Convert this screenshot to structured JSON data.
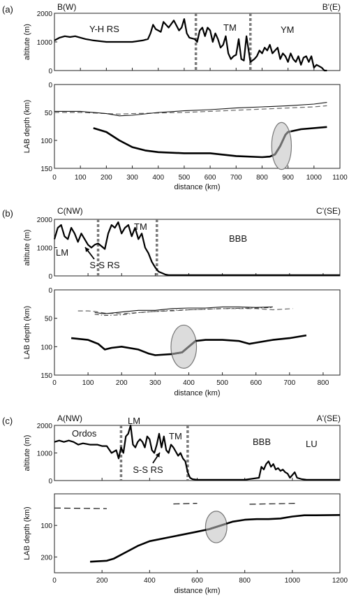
{
  "figure": {
    "panels": [
      {
        "letter": "(a)",
        "left_label": "B(W)",
        "right_label": "B'(E)",
        "regions": [
          "Y-H RS",
          "TM",
          "YM"
        ],
        "altitude": {
          "ylabel": "altitute (m)",
          "ylim": [
            0,
            2000
          ],
          "yticks": [
            0,
            1000,
            2000
          ],
          "boundaries": [
            545,
            755
          ],
          "x": [
            0,
            20,
            40,
            60,
            80,
            100,
            120,
            150,
            200,
            250,
            300,
            340,
            360,
            370,
            380,
            390,
            400,
            410,
            420,
            440,
            460,
            480,
            490,
            500,
            510,
            520,
            540,
            550,
            560,
            570,
            580,
            590,
            600,
            610,
            620,
            630,
            640,
            650,
            660,
            670,
            680,
            690,
            700,
            710,
            720,
            730,
            740,
            755,
            770,
            780,
            790,
            800,
            810,
            820,
            830,
            840,
            850,
            860,
            870,
            880,
            890,
            900,
            910,
            920,
            930,
            940,
            950,
            960,
            970,
            980,
            990,
            1000,
            1010,
            1020,
            1030,
            1040,
            1050
          ],
          "y": [
            1050,
            1150,
            1200,
            1170,
            1200,
            1150,
            1100,
            1050,
            1000,
            1000,
            1000,
            1050,
            1100,
            1300,
            1600,
            1450,
            1400,
            1350,
            1700,
            1500,
            1750,
            1400,
            1500,
            1800,
            1300,
            1150,
            1100,
            1000,
            1400,
            1500,
            1200,
            1500,
            1400,
            1000,
            1300,
            1100,
            800,
            900,
            1200,
            600,
            400,
            500,
            550,
            1100,
            400,
            350,
            1200,
            300,
            400,
            500,
            700,
            600,
            800,
            700,
            900,
            600,
            700,
            800,
            400,
            600,
            500,
            300,
            600,
            400,
            300,
            500,
            200,
            450,
            500,
            300,
            500,
            100,
            200,
            150,
            100,
            0,
            0
          ]
        },
        "lab": {
          "ylabel": "LAB depth (km)",
          "ylim": [
            0,
            150
          ],
          "yticks": [
            0,
            50,
            100,
            150
          ],
          "xlabel": "distance (km)",
          "xlim": [
            0,
            1100
          ],
          "xticks": [
            0,
            100,
            200,
            300,
            400,
            500,
            600,
            700,
            800,
            900,
            1000,
            1100
          ],
          "main": {
            "x": [
              150,
              200,
              250,
              300,
              350,
              400,
              500,
              600,
              700,
              800,
              830,
              850,
              870,
              880,
              890,
              900,
              950,
              1050
            ],
            "y": [
              78,
              85,
              100,
              112,
              118,
              121,
              123,
              123,
              128,
              130,
              129,
              125,
              110,
              100,
              90,
              85,
              80,
              76
            ]
          },
          "thin_solid": {
            "x": [
              0,
              100,
              200,
              250,
              300,
              400,
              500,
              600,
              700,
              800,
              900,
              1000,
              1050
            ],
            "y": [
              48,
              48,
              52,
              56,
              55,
              50,
              47,
              45,
              42,
              40,
              38,
              35,
              32
            ]
          },
          "dashed": {
            "x": [
              0,
              100,
              200,
              250,
              300,
              400,
              500,
              600,
              700,
              800,
              900,
              1000,
              1050
            ],
            "y": [
              50,
              50,
              52,
              53,
              52,
              51,
              50,
              48,
              46,
              44,
              42,
              40,
              38
            ]
          },
          "ellipse": {
            "cx": 875,
            "cy": 110,
            "rx": 38,
            "ry": 42
          }
        }
      },
      {
        "letter": "(b)",
        "left_label": "C(NW)",
        "right_label": "C'(SE)",
        "regions": [
          "LM",
          "TM",
          "BBB"
        ],
        "arrow_label": "S-S RS",
        "altitude": {
          "ylabel": "altitute (m)",
          "ylim": [
            0,
            2000
          ],
          "yticks": [
            0,
            1000,
            2000
          ],
          "boundaries": [
            130,
            305
          ],
          "x": [
            0,
            10,
            20,
            30,
            40,
            50,
            60,
            70,
            80,
            90,
            100,
            110,
            120,
            130,
            140,
            150,
            160,
            170,
            180,
            190,
            200,
            210,
            220,
            230,
            240,
            250,
            260,
            270,
            280,
            290,
            300,
            310,
            320,
            330,
            340,
            350,
            400,
            500,
            600,
            700,
            850
          ],
          "y": [
            1300,
            1700,
            1800,
            1400,
            1300,
            1700,
            1500,
            1200,
            1500,
            1300,
            1100,
            1000,
            1100,
            1150,
            1050,
            950,
            1500,
            1800,
            1700,
            1900,
            1500,
            1700,
            1800,
            1400,
            1700,
            1300,
            1500,
            1000,
            800,
            500,
            300,
            150,
            100,
            50,
            30,
            30,
            30,
            30,
            30,
            30,
            30
          ]
        },
        "lab": {
          "ylabel": "LAB depth (km)",
          "ylim": [
            0,
            150
          ],
          "yticks": [
            0,
            50,
            100,
            150
          ],
          "xlabel": "distance (km)",
          "xlim": [
            0,
            850
          ],
          "xticks": [
            0,
            100,
            200,
            300,
            400,
            500,
            600,
            700,
            800
          ],
          "main": {
            "x": [
              50,
              100,
              130,
              150,
              170,
              200,
              250,
              280,
              300,
              350,
              380,
              400,
              420,
              450,
              500,
              550,
              580,
              600,
              650,
              700,
              750
            ],
            "y": [
              85,
              88,
              95,
              105,
              102,
              100,
              105,
              112,
              115,
              113,
              110,
              100,
              90,
              88,
              88,
              90,
              95,
              93,
              88,
              85,
              80
            ]
          },
          "thin_solid": {
            "x": [
              120,
              150,
              200,
              250,
              300,
              350,
              400,
              450,
              500,
              550,
              600,
              650
            ],
            "y": [
              40,
              42,
              39,
              36,
              36,
              33,
              32,
              32,
              30,
              30,
              31,
              30
            ]
          },
          "dashed": {
            "x": [
              70,
              100,
              120,
              150,
              200,
              250,
              300,
              350,
              400,
              450,
              500,
              550,
              600,
              650,
              710
            ],
            "y": [
              37,
              37,
              38,
              41,
              42,
              40,
              38,
              37,
              35,
              34,
              33,
              33,
              33,
              35,
              33
            ]
          },
          "dashdot": {
            "x": [
              120,
              150,
              200,
              250,
              300,
              350,
              400,
              500,
              600,
              650
            ],
            "y": [
              43,
              45,
              44,
              40,
              38,
              36,
              35,
              33,
              32,
              31
            ]
          },
          "ellipse": {
            "cx": 385,
            "cy": 100,
            "rx": 38,
            "ry": 38
          }
        }
      },
      {
        "letter": "(c)",
        "left_label": "A(NW)",
        "right_label": "A'(SE)",
        "regions": [
          "Ordos",
          "LM",
          "TM",
          "BBB",
          "LU"
        ],
        "arrow_label": "S-S RS",
        "altitude": {
          "ylabel": "altitute (m)",
          "ylim": [
            0,
            2000
          ],
          "yticks": [
            0,
            1000,
            2000
          ],
          "boundaries": [
            280,
            560
          ],
          "x": [
            0,
            20,
            40,
            60,
            80,
            100,
            120,
            150,
            180,
            200,
            220,
            240,
            260,
            270,
            280,
            290,
            300,
            310,
            320,
            330,
            340,
            350,
            360,
            370,
            380,
            390,
            400,
            410,
            420,
            430,
            440,
            450,
            460,
            470,
            480,
            490,
            500,
            510,
            520,
            530,
            540,
            550,
            560,
            570,
            580,
            600,
            700,
            800,
            860,
            870,
            880,
            890,
            900,
            910,
            920,
            930,
            940,
            950,
            960,
            970,
            980,
            990,
            1000,
            1010,
            1020,
            1040,
            1060,
            1100,
            1200
          ],
          "y": [
            1400,
            1450,
            1400,
            1450,
            1400,
            1300,
            1350,
            1300,
            1300,
            1250,
            1250,
            1000,
            1100,
            800,
            1200,
            1000,
            1600,
            1700,
            2000,
            1300,
            1200,
            1400,
            1500,
            1400,
            1200,
            1600,
            1500,
            1100,
            1000,
            1300,
            1700,
            1200,
            1600,
            1100,
            1000,
            1300,
            1200,
            1050,
            900,
            1000,
            800,
            700,
            300,
            100,
            50,
            30,
            30,
            30,
            100,
            500,
            400,
            600,
            700,
            500,
            600,
            400,
            450,
            350,
            400,
            300,
            250,
            100,
            200,
            300,
            100,
            50,
            30,
            30,
            30
          ]
        },
        "lab": {
          "ylabel": "LAB depth (km)",
          "ylim": [
            0,
            250
          ],
          "yticks": [
            100,
            200
          ],
          "xlabel": "distance (km)",
          "xlim": [
            0,
            1200
          ],
          "xticks": [
            0,
            200,
            400,
            600,
            800,
            1000,
            1200
          ],
          "main": {
            "x": [
              150,
              220,
              250,
              300,
              350,
              400,
              500,
              600,
              650,
              700,
              750,
              800,
              850,
              900,
              950,
              1000,
              1050,
              1100,
              1200
            ],
            "y": [
              215,
              212,
              205,
              185,
              165,
              150,
              135,
              120,
              112,
              100,
              88,
              82,
              80,
              80,
              78,
              72,
              68,
              68,
              67
            ]
          },
          "dashed_segments": [
            {
              "x": [
                0,
                220
              ],
              "y": [
                45,
                47
              ]
            },
            {
              "x": [
                500,
                600
              ],
              "y": [
                32,
                30
              ]
            },
            {
              "x": [
                820,
                1020
              ],
              "y": [
                33,
                30
              ]
            }
          ],
          "ellipse": {
            "cx": 680,
            "cy": 105,
            "rx": 45,
            "ry": 50
          }
        }
      }
    ]
  }
}
